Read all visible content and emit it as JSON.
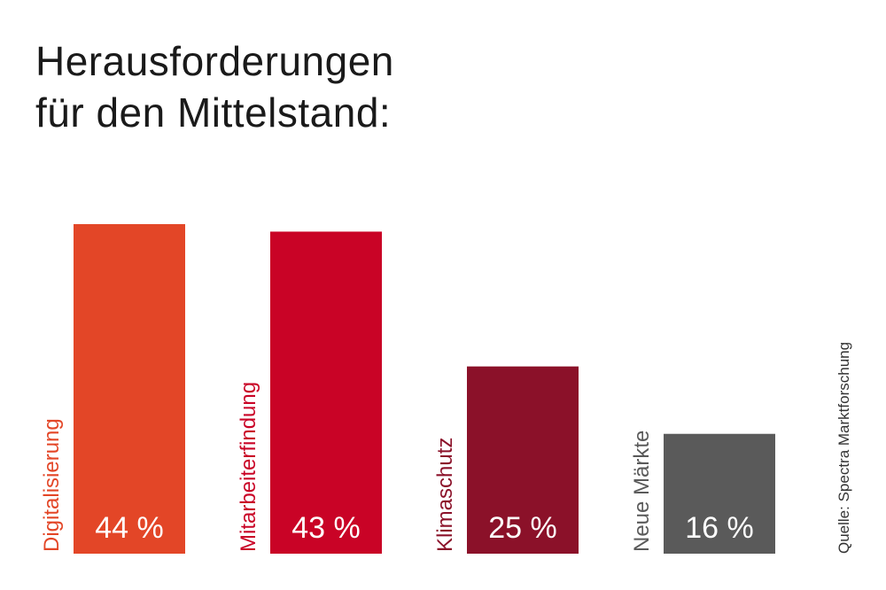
{
  "chart_data": {
    "type": "bar",
    "title_lines": [
      "Herausforderungen",
      "für den Mittelstand:"
    ],
    "categories": [
      "Digitalisierung",
      "Mitarbeiterfindung",
      "Klimaschutz",
      "Neue Märkte"
    ],
    "values": [
      44,
      43,
      25,
      16
    ],
    "value_labels": [
      "44 %",
      "43 %",
      "25 %",
      "16 %"
    ],
    "colors": [
      "#e34627",
      "#c90326",
      "#8b1129",
      "#5a5a5a"
    ],
    "ylim": [
      0,
      44
    ],
    "grid": false,
    "legend": "none"
  },
  "source": "Quelle: Spectra Marktforschung"
}
